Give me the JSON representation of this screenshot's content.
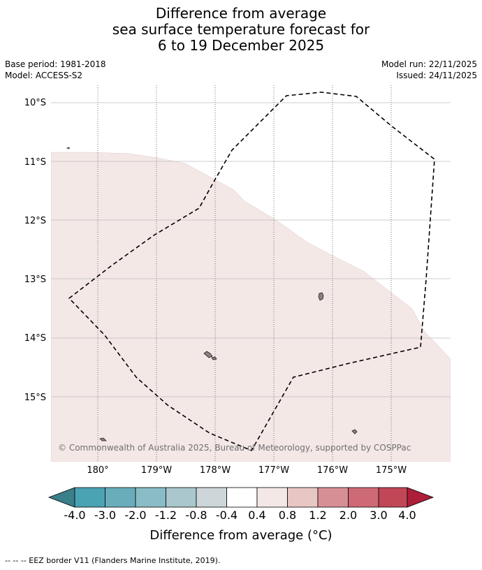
{
  "title": {
    "line1": "Difference from average",
    "line2": "sea surface temperature forecast for",
    "line3": "6 to 19 December 2025"
  },
  "meta": {
    "base_period": "Base period: 1981-2018",
    "model": "Model: ACCESS-S2",
    "model_run": "Model run: 22/11/2025",
    "issued": "Issued: 24/11/2025"
  },
  "map": {
    "lat_labels": [
      "10°S",
      "11°S",
      "12°S",
      "13°S",
      "14°S",
      "15°S"
    ],
    "lon_labels": [
      "180°",
      "179°W",
      "178°W",
      "177°W",
      "176°W",
      "175°W"
    ],
    "copyright": "© Commonwealth of Australia 2025, Bureau of Meteorology, supported by COSPPac",
    "colors": {
      "anomaly_fill": "#f4e8e7",
      "land": "#8c8080",
      "eez_line": "#000000"
    }
  },
  "colorbar": {
    "title": "Difference from average (°C)",
    "ticks": [
      "-4.0",
      "-3.0",
      "-2.0",
      "-1.2",
      "-0.8",
      "-0.4",
      "0.4",
      "0.8",
      "1.2",
      "2.0",
      "3.0",
      "4.0"
    ],
    "colors": [
      "#3a7f89",
      "#4aa3b3",
      "#69adbb",
      "#89bcc6",
      "#a9c7cc",
      "#cdd6d8",
      "#ffffff",
      "#f4e8e7",
      "#e8c6c3",
      "#d78f96",
      "#ce6a76",
      "#c14757",
      "#ac1e3a"
    ]
  },
  "footnote": "-- -- -- EEZ border V11 (Flanders Marine Institute, 2019)."
}
